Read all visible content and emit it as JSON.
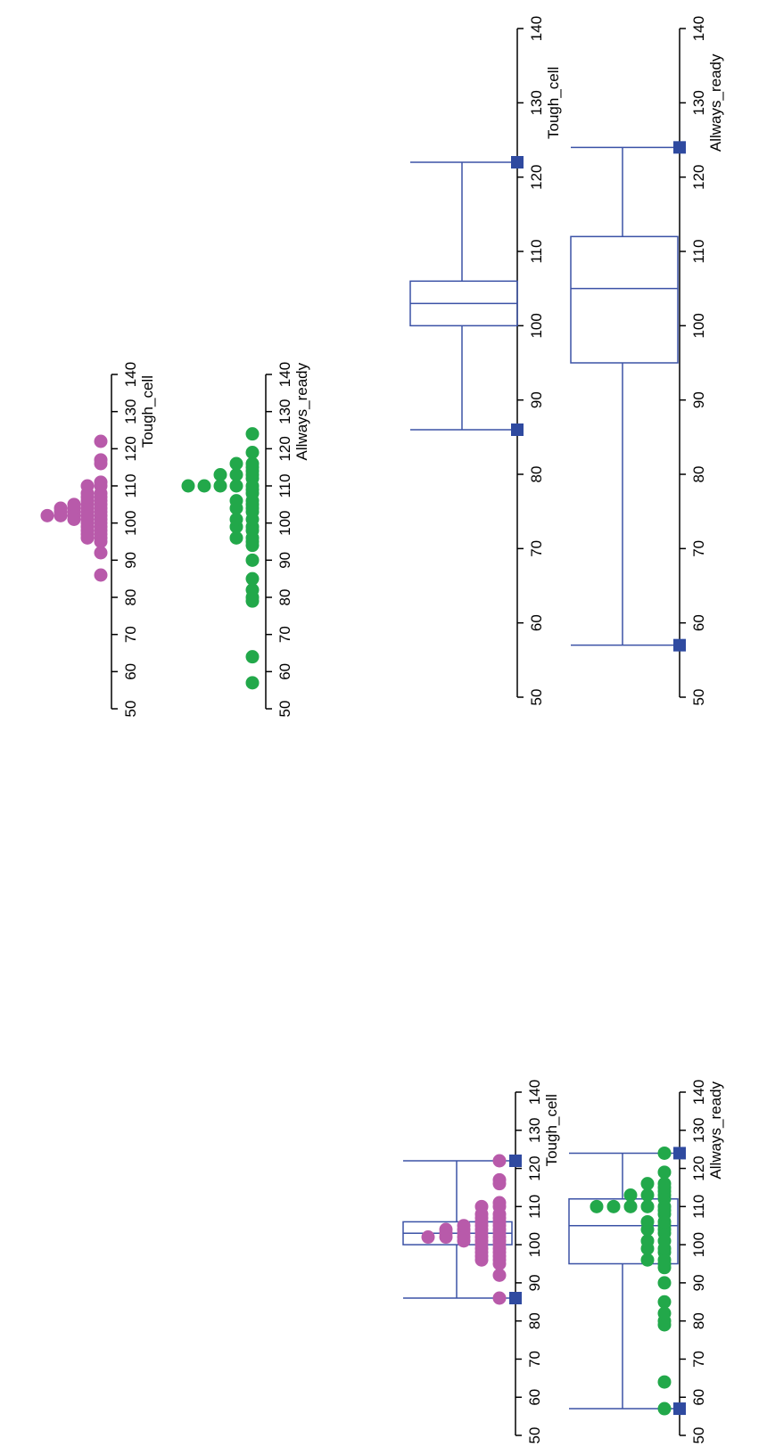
{
  "colors": {
    "tough_cell_dots": "#b85aaa",
    "allways_ready_dots": "#22a84a",
    "box": "#3b52a6",
    "marker": "#2f4aa0",
    "axis": "#000000"
  },
  "chart_data": [
    {
      "type": "scatter",
      "subtype": "dot-plot",
      "xlabel": "Tough_cell",
      "xlim": [
        50,
        140
      ],
      "ticks": [
        50,
        60,
        70,
        80,
        90,
        100,
        110,
        120,
        130,
        140
      ],
      "values": [
        86,
        92,
        95,
        96,
        96,
        97,
        97,
        98,
        98,
        99,
        99,
        100,
        100,
        101,
        101,
        101,
        102,
        102,
        102,
        102,
        102,
        103,
        103,
        103,
        103,
        104,
        104,
        104,
        104,
        105,
        105,
        105,
        106,
        106,
        107,
        107,
        108,
        108,
        110,
        110,
        111,
        116,
        117,
        122
      ]
    },
    {
      "type": "scatter",
      "subtype": "dot-plot",
      "xlabel": "Allways_ready",
      "xlim": [
        50,
        140
      ],
      "ticks": [
        50,
        60,
        70,
        80,
        90,
        100,
        110,
        120,
        130,
        140
      ],
      "values": [
        57,
        64,
        79,
        80,
        82,
        85,
        90,
        94,
        95,
        96,
        96,
        98,
        99,
        99,
        101,
        101,
        103,
        104,
        104,
        105,
        106,
        106,
        108,
        109,
        110,
        110,
        110,
        110,
        110,
        112,
        113,
        113,
        113,
        114,
        115,
        116,
        116,
        119,
        124
      ]
    },
    {
      "type": "box",
      "subtype": "dot-plot-with-box",
      "xlabel": "Tough_cell",
      "xlim": [
        50,
        140
      ],
      "ticks": [
        50,
        60,
        70,
        80,
        90,
        100,
        110,
        120,
        130,
        140
      ],
      "box": {
        "whisker_low": 86,
        "q1": 100,
        "median": 103,
        "q3": 106,
        "whisker_high": 122
      },
      "markers": [
        86,
        122
      ],
      "values": [
        86,
        92,
        95,
        96,
        96,
        97,
        97,
        98,
        98,
        99,
        99,
        100,
        100,
        101,
        101,
        101,
        102,
        102,
        102,
        102,
        102,
        103,
        103,
        103,
        103,
        104,
        104,
        104,
        104,
        105,
        105,
        105,
        106,
        106,
        107,
        107,
        108,
        108,
        110,
        110,
        111,
        116,
        117,
        122
      ]
    },
    {
      "type": "box",
      "subtype": "dot-plot-with-box",
      "xlabel": "Allways_ready",
      "xlim": [
        50,
        140
      ],
      "ticks": [
        50,
        60,
        70,
        80,
        90,
        100,
        110,
        120,
        130,
        140
      ],
      "box": {
        "whisker_low": 57,
        "q1": 95,
        "median": 105,
        "q3": 112,
        "whisker_high": 124
      },
      "markers": [
        57,
        124
      ],
      "values": [
        57,
        64,
        79,
        80,
        82,
        85,
        90,
        94,
        95,
        96,
        96,
        98,
        99,
        99,
        101,
        101,
        103,
        104,
        104,
        105,
        106,
        106,
        108,
        109,
        110,
        110,
        110,
        110,
        110,
        112,
        113,
        113,
        113,
        114,
        115,
        116,
        116,
        119,
        124
      ]
    },
    {
      "type": "box",
      "xlabel": "Tough_cell",
      "xlim": [
        50,
        140
      ],
      "ticks": [
        50,
        60,
        70,
        80,
        90,
        100,
        110,
        120,
        130,
        140
      ],
      "box": {
        "whisker_low": 86,
        "q1": 100,
        "median": 103,
        "q3": 106,
        "whisker_high": 122
      },
      "markers": [
        86,
        122
      ]
    },
    {
      "type": "box",
      "xlabel": "Allways_ready",
      "xlim": [
        50,
        140
      ],
      "ticks": [
        50,
        60,
        70,
        80,
        90,
        100,
        110,
        120,
        130,
        140
      ],
      "box": {
        "whisker_low": 57,
        "q1": 95,
        "median": 105,
        "q3": 112,
        "whisker_high": 124
      },
      "markers": [
        57,
        124
      ]
    }
  ]
}
